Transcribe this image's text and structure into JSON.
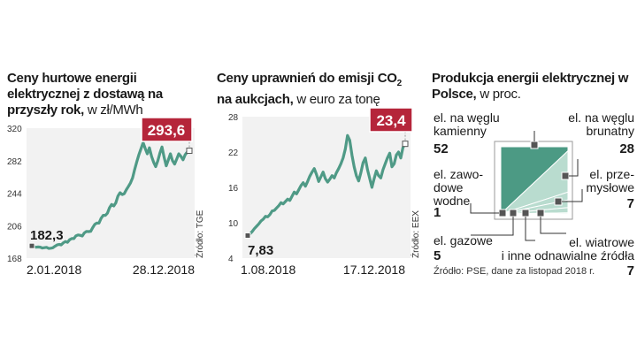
{
  "colors": {
    "accent_red": "#b5253a",
    "line_teal": "#4f9a86",
    "dark_teal": "#4c9a84",
    "light_teal": "#b9dccf",
    "plot_bg": "#f2f2f2"
  },
  "chart_data": [
    {
      "type": "line",
      "title_bold": "Ceny hurtowe energii elektrycznej z dostawą na przyszły rok,",
      "title_light": "w zł/MWh",
      "yticks": [
        "168",
        "206",
        "244",
        "282",
        "320"
      ],
      "ylim": [
        168,
        320
      ],
      "x_labels": [
        "2.01.2018",
        "28.12.2018"
      ],
      "start_value": "182,3",
      "end_value": "293,6",
      "source": "Źródło: TGE",
      "values": [
        182.3,
        181.5,
        180.7,
        181.0,
        180.8,
        179.8,
        180.2,
        180.6,
        179.4,
        179.6,
        180.1,
        181.9,
        183.4,
        184.0,
        183.5,
        185.9,
        187.4,
        186.5,
        189.5,
        190.9,
        190.8,
        194.1,
        195.1,
        194.7,
        193.9,
        197.5,
        199.2,
        199.0,
        199.3,
        203.7,
        207.6,
        209.0,
        208.9,
        214.6,
        218.0,
        218.0,
        220.5,
        226.9,
        230.8,
        229.0,
        232.6,
        240.6,
        244.5,
        242.3,
        243.4,
        248.0,
        252.0,
        256.0,
        262.0,
        272.0,
        281.0,
        289.0,
        296.0,
        303.0,
        296.0,
        290.0,
        297.0,
        287.0,
        280.0,
        275.0,
        282.0,
        291.0,
        298.0,
        286.0,
        276.0,
        283.0,
        290.0,
        282.0,
        278.0,
        284.0,
        290.0,
        287.0,
        283.0,
        289.0,
        292.0,
        293.6
      ]
    },
    {
      "type": "line",
      "title_bold_1": "Ceny uprawnień do emisji CO",
      "title_sub": "2",
      "title_bold_2": "na aukcjach,",
      "title_light": "w euro za tonę",
      "yticks": [
        "4",
        "10",
        "16",
        "22",
        "28"
      ],
      "ylim": [
        4,
        28
      ],
      "x_labels": [
        "1.08.2018",
        "17.12.2018"
      ],
      "start_value": "7,83",
      "end_value": "23,4",
      "source": "Źródło: EEX",
      "values": [
        7.83,
        8.1,
        8.5,
        9.0,
        9.4,
        9.8,
        10.3,
        10.6,
        11.1,
        11.0,
        11.4,
        12.0,
        12.1,
        12.5,
        12.9,
        13.4,
        13.2,
        13.6,
        14.0,
        13.8,
        14.5,
        15.2,
        14.9,
        15.6,
        16.3,
        16.8,
        16.2,
        17.0,
        17.9,
        18.6,
        19.2,
        18.2,
        17.0,
        17.8,
        18.6,
        17.5,
        16.9,
        17.4,
        18.0,
        17.6,
        18.5,
        19.2,
        20.0,
        21.0,
        22.5,
        24.8,
        24.0,
        21.5,
        19.5,
        18.0,
        17.1,
        18.5,
        20.2,
        21.0,
        19.0,
        17.5,
        16.0,
        17.5,
        18.8,
        18.0,
        17.6,
        19.0,
        20.0,
        21.0,
        21.8,
        19.5,
        20.0,
        21.5,
        22.0,
        21.0,
        22.8,
        23.4
      ]
    },
    {
      "type": "pie",
      "title_bold": "Produkcja energii elektrycznej w Polsce,",
      "title_light": "w proc.",
      "source": "Źródło: PSE, dane za listopad 2018 r.",
      "slices": [
        {
          "name_lines": [
            "el. na węglu",
            "kamienny"
          ],
          "value": 52,
          "value_label": "52",
          "color": "#4c9a84"
        },
        {
          "name_lines": [
            "el. na węglu",
            "brunatny"
          ],
          "value": 28,
          "value_label": "28",
          "color": "#b9dccf"
        },
        {
          "name_lines": [
            "el. prze-",
            "mysłowe"
          ],
          "value": 7,
          "value_label": "7",
          "color": "#b9dccf"
        },
        {
          "name_lines": [
            "el. wiatrowe",
            "i inne odnawialne źródła"
          ],
          "value": 7,
          "value_label": "7",
          "color": "#b9dccf"
        },
        {
          "name_lines": [
            "el. gazowe"
          ],
          "value": 5,
          "value_label": "5",
          "color": "#b9dccf"
        },
        {
          "name_lines": [
            "el. zawo-",
            "dowe",
            "wodne"
          ],
          "value": 1,
          "value_label": "1",
          "color": "#b9dccf"
        }
      ]
    }
  ]
}
